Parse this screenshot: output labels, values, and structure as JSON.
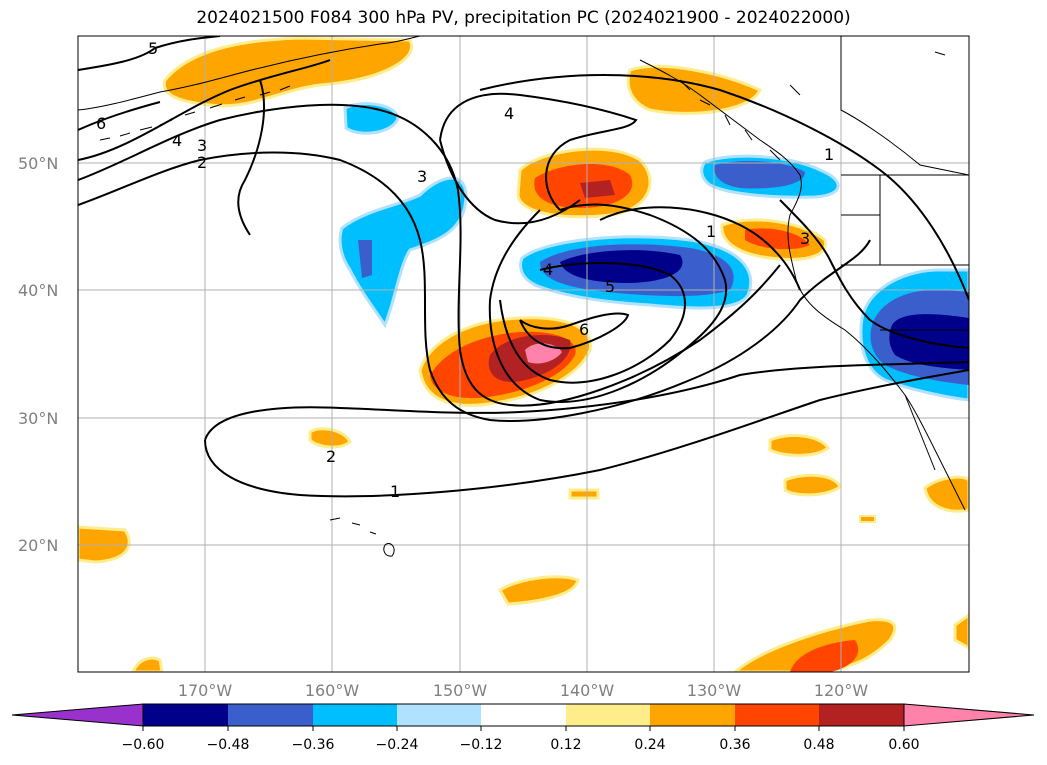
{
  "title": "2024021500 F084 300 hPa PV, precipitation PC (2024021900 - 2024022000)",
  "map": {
    "lat_ticks": [
      "20°N",
      "30°N",
      "40°N",
      "50°N"
    ],
    "lon_ticks": [
      "170°W",
      "160°W",
      "150°W",
      "140°W",
      "130°W",
      "120°W"
    ],
    "grid": true
  },
  "colorbar": {
    "labels": [
      "−0.60",
      "−0.48",
      "−0.36",
      "−0.24",
      "−0.12",
      "0.12",
      "0.24",
      "0.36",
      "0.48",
      "0.60"
    ],
    "colors": [
      "#9932cc",
      "#00008b",
      "#3a5fcd",
      "#00bfff",
      "#b0e2ff",
      "#ffffff",
      "#ffec8b",
      "#ffa500",
      "#ff4500",
      "#b22222",
      "#ff82ab"
    ]
  },
  "contour_labels": [
    "5",
    "6",
    "4",
    "3",
    "2",
    "4",
    "3",
    "1",
    "1",
    "3",
    "4",
    "5",
    "6",
    "2",
    "1"
  ]
}
